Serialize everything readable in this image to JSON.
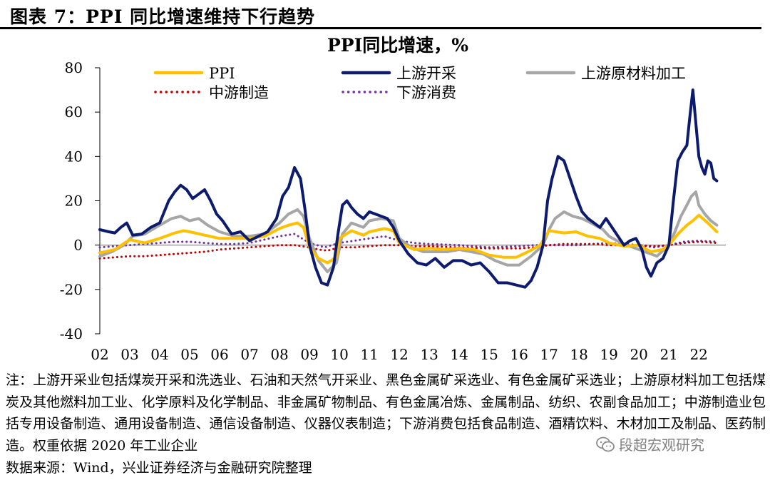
{
  "figure": {
    "title": "图表 7：PPI 同比增速维持下行趋势"
  },
  "chart_data": {
    "type": "line",
    "title": "PPI同比增速，%",
    "xlabel": "",
    "ylabel": "",
    "ylim": [
      -40,
      80
    ],
    "yticks": [
      -40,
      -20,
      0,
      20,
      40,
      60,
      80
    ],
    "xlim": [
      2002,
      2022.9
    ],
    "xticks": [
      "02",
      "03",
      "04",
      "05",
      "06",
      "07",
      "08",
      "09",
      "10",
      "11",
      "12",
      "13",
      "14",
      "15",
      "16",
      "17",
      "18",
      "19",
      "20",
      "21",
      "22"
    ],
    "xtick_values": [
      2002,
      2003,
      2004,
      2005,
      2006,
      2007,
      2008,
      2009,
      2010,
      2011,
      2012,
      2013,
      2014,
      2015,
      2016,
      2017,
      2018,
      2019,
      2020,
      2021,
      2022
    ],
    "series": [
      {
        "name": "PPI",
        "style": "solid",
        "color": "#FFC000",
        "x": [
          2002,
          2002.5,
          2003,
          2003.5,
          2004,
          2004.5,
          2004.8,
          2005,
          2005.5,
          2006,
          2006.5,
          2007,
          2007.5,
          2008,
          2008.3,
          2008.6,
          2008.8,
          2009,
          2009.3,
          2009.6,
          2009.9,
          2010,
          2010.4,
          2010.8,
          2011,
          2011.5,
          2011.8,
          2012,
          2012.5,
          2013,
          2013.5,
          2014,
          2014.5,
          2015,
          2015.5,
          2015.9,
          2016.3,
          2016.7,
          2017,
          2017.5,
          2017.9,
          2018.3,
          2018.7,
          2019,
          2019.5,
          2020,
          2020.4,
          2020.8,
          2021,
          2021.3,
          2021.6,
          2021.8,
          2022,
          2022.3,
          2022.6
        ],
        "y": [
          -3.5,
          -2,
          2.5,
          1,
          3,
          5.5,
          6.5,
          6,
          4.5,
          3,
          3,
          3,
          4,
          7.5,
          9,
          10,
          8,
          -1,
          -6,
          -8,
          -5.5,
          3,
          6.5,
          4.5,
          6,
          7.5,
          6.5,
          1,
          -2,
          -1.5,
          -2,
          -1.5,
          -2,
          -4.5,
          -5.5,
          -5.5,
          -3,
          0,
          6.5,
          5.5,
          6,
          4,
          3,
          1,
          -0.5,
          0,
          -3,
          -2,
          0,
          5,
          9,
          11,
          13.5,
          10,
          6
        ]
      },
      {
        "name": "上游开采",
        "style": "solid",
        "color": "#0D1B6E",
        "x": [
          2002,
          2002.3,
          2002.5,
          2002.7,
          2002.9,
          2003.1,
          2003.4,
          2003.7,
          2004,
          2004.3,
          2004.5,
          2004.7,
          2004.9,
          2005.1,
          2005.3,
          2005.5,
          2005.7,
          2005.9,
          2006.1,
          2006.4,
          2006.7,
          2007,
          2007.3,
          2007.6,
          2007.9,
          2008.1,
          2008.3,
          2008.5,
          2008.7,
          2008.85,
          2009,
          2009.2,
          2009.4,
          2009.6,
          2009.8,
          2009.95,
          2010.1,
          2010.25,
          2010.4,
          2010.6,
          2010.8,
          2011,
          2011.2,
          2011.4,
          2011.6,
          2011.8,
          2012,
          2012.3,
          2012.6,
          2012.9,
          2013.2,
          2013.5,
          2013.8,
          2014.1,
          2014.4,
          2014.7,
          2015,
          2015.3,
          2015.6,
          2015.9,
          2016.2,
          2016.4,
          2016.6,
          2016.8,
          2016.95,
          2017.1,
          2017.3,
          2017.5,
          2017.7,
          2017.9,
          2018.1,
          2018.3,
          2018.5,
          2018.7,
          2018.9,
          2019.1,
          2019.3,
          2019.5,
          2019.7,
          2019.9,
          2020.1,
          2020.25,
          2020.4,
          2020.6,
          2020.8,
          2021,
          2021.15,
          2021.3,
          2021.45,
          2021.6,
          2021.7,
          2021.8,
          2021.9,
          2022,
          2022.1,
          2022.2,
          2022.3,
          2022.4,
          2022.5,
          2022.6
        ],
        "y": [
          7,
          6,
          5.5,
          8,
          10,
          4.5,
          5,
          8,
          10,
          20,
          24,
          27,
          25,
          21,
          23,
          25,
          20,
          14,
          11,
          5,
          6,
          2,
          4,
          6,
          12,
          22,
          26,
          35,
          30,
          16,
          0,
          -10,
          -17,
          -18,
          -10,
          5,
          18,
          20,
          17,
          14,
          12,
          15,
          14,
          13,
          12,
          8,
          2,
          -4,
          -8,
          -9,
          -6,
          -10,
          -7,
          -7,
          -9,
          -8,
          -12,
          -17,
          -17,
          -18,
          -19,
          -16,
          -10,
          0,
          20,
          30,
          40,
          38,
          30,
          22,
          15,
          12,
          10,
          8,
          12,
          8,
          4,
          0,
          2,
          3,
          -2,
          -10,
          -14,
          -8,
          -6,
          0,
          20,
          38,
          42,
          45,
          58,
          70,
          55,
          40,
          35,
          32,
          38,
          37,
          30,
          29
        ]
      },
      {
        "name": "上游原材料加工",
        "style": "solid",
        "color": "#A6A6A6",
        "x": [
          2002,
          2002.4,
          2002.8,
          2003.1,
          2003.5,
          2004,
          2004.4,
          2004.7,
          2005,
          2005.3,
          2005.6,
          2006,
          2006.5,
          2007,
          2007.5,
          2008,
          2008.3,
          2008.6,
          2008.8,
          2009,
          2009.3,
          2009.6,
          2009.9,
          2010.1,
          2010.4,
          2010.8,
          2011,
          2011.4,
          2011.8,
          2012,
          2012.4,
          2012.8,
          2013.2,
          2013.6,
          2014,
          2014.4,
          2014.8,
          2015.2,
          2015.6,
          2016,
          2016.4,
          2016.8,
          2017,
          2017.2,
          2017.5,
          2017.8,
          2018.1,
          2018.4,
          2018.8,
          2019,
          2019.4,
          2019.8,
          2020.2,
          2020.6,
          2021,
          2021.2,
          2021.4,
          2021.6,
          2021.75,
          2021.9,
          2022,
          2022.2,
          2022.4,
          2022.6
        ],
        "y": [
          -5,
          -3,
          0,
          4,
          5,
          9,
          12,
          13,
          11,
          12,
          9,
          6,
          4,
          4,
          5,
          10,
          14,
          16,
          13,
          3,
          -7,
          -12,
          -8,
          5,
          10,
          8,
          11,
          12,
          11,
          3,
          -1,
          -3,
          -3,
          -3,
          -2,
          -3,
          -4,
          -7,
          -9,
          -9,
          -5,
          0,
          7,
          12,
          15,
          13,
          12,
          10,
          7,
          4,
          1,
          -1,
          -3,
          -5,
          0,
          6,
          13,
          18,
          22,
          24,
          18,
          14,
          11,
          9
        ]
      },
      {
        "name": "中游制造",
        "style": "dotted",
        "color": "#C00000",
        "x": [
          2002,
          2002.5,
          2003,
          2003.5,
          2004,
          2004.5,
          2005,
          2005.5,
          2006,
          2006.5,
          2007,
          2007.5,
          2008,
          2008.5,
          2009,
          2009.3,
          2009.6,
          2010,
          2010.5,
          2011,
          2011.5,
          2012,
          2012.5,
          2013,
          2014,
          2015,
          2016,
          2016.5,
          2017,
          2017.5,
          2018,
          2018.5,
          2019,
          2019.5,
          2020,
          2020.5,
          2021,
          2021.5,
          2022,
          2022.6
        ],
        "y": [
          -6,
          -5.5,
          -5,
          -5,
          -4.5,
          -4,
          -3.5,
          -3,
          -2,
          -1.5,
          -1,
          -0.5,
          0,
          0,
          -1,
          -2,
          -2.5,
          -1,
          -1,
          -0.5,
          0,
          0,
          -0.5,
          -0.5,
          -1,
          -1.5,
          -1.5,
          -1,
          0,
          0.5,
          0.5,
          0.5,
          0,
          0,
          0,
          -0.5,
          0,
          1,
          1.5,
          1
        ]
      },
      {
        "name": "下游消费",
        "style": "dotted",
        "color": "#7030A0",
        "x": [
          2002,
          2002.5,
          2003,
          2003.5,
          2004,
          2004.5,
          2005,
          2005.5,
          2006,
          2006.5,
          2007,
          2007.5,
          2008,
          2008.5,
          2009,
          2009.5,
          2010,
          2010.5,
          2011,
          2011.5,
          2012,
          2012.5,
          2013,
          2014,
          2015,
          2016,
          2016.5,
          2017,
          2018,
          2019,
          2019.5,
          2020,
          2020.5,
          2021,
          2021.5,
          2022,
          2022.6
        ],
        "y": [
          -1,
          -0.5,
          0,
          0.5,
          1,
          1.5,
          1.5,
          1,
          0.5,
          0.5,
          1,
          2.5,
          4,
          5,
          1,
          -1,
          1,
          2,
          3,
          4,
          2,
          1,
          0.5,
          0,
          -1,
          -0.5,
          0,
          0,
          0,
          1,
          0.5,
          0,
          -1,
          0,
          1.5,
          2,
          1.5
        ]
      }
    ]
  },
  "note_text": "注：上游开采业包括煤炭开采和洗选业、石油和天然气开采业、黑色金属矿采选业、有色金属矿采选业；上游原材料加工包括煤炭及其他燃料加工业、化学原料及化学制品、非金属矿物制品、有色金属冶炼、金属制品、纺织、农副食品加工；中游制造业包括专用设备制造、通用设备制造、通信设备制造、仪器仪表制造；下游消费包括食品制造、酒精饮料、木材加工及制品、医药制造。权重依据 2020 年工业企业",
  "source_text": "数据来源：Wind，兴业证券经济与金融研究院整理",
  "watermark": {
    "text": "段超宏观研究",
    "icon": "wechat-icon"
  }
}
